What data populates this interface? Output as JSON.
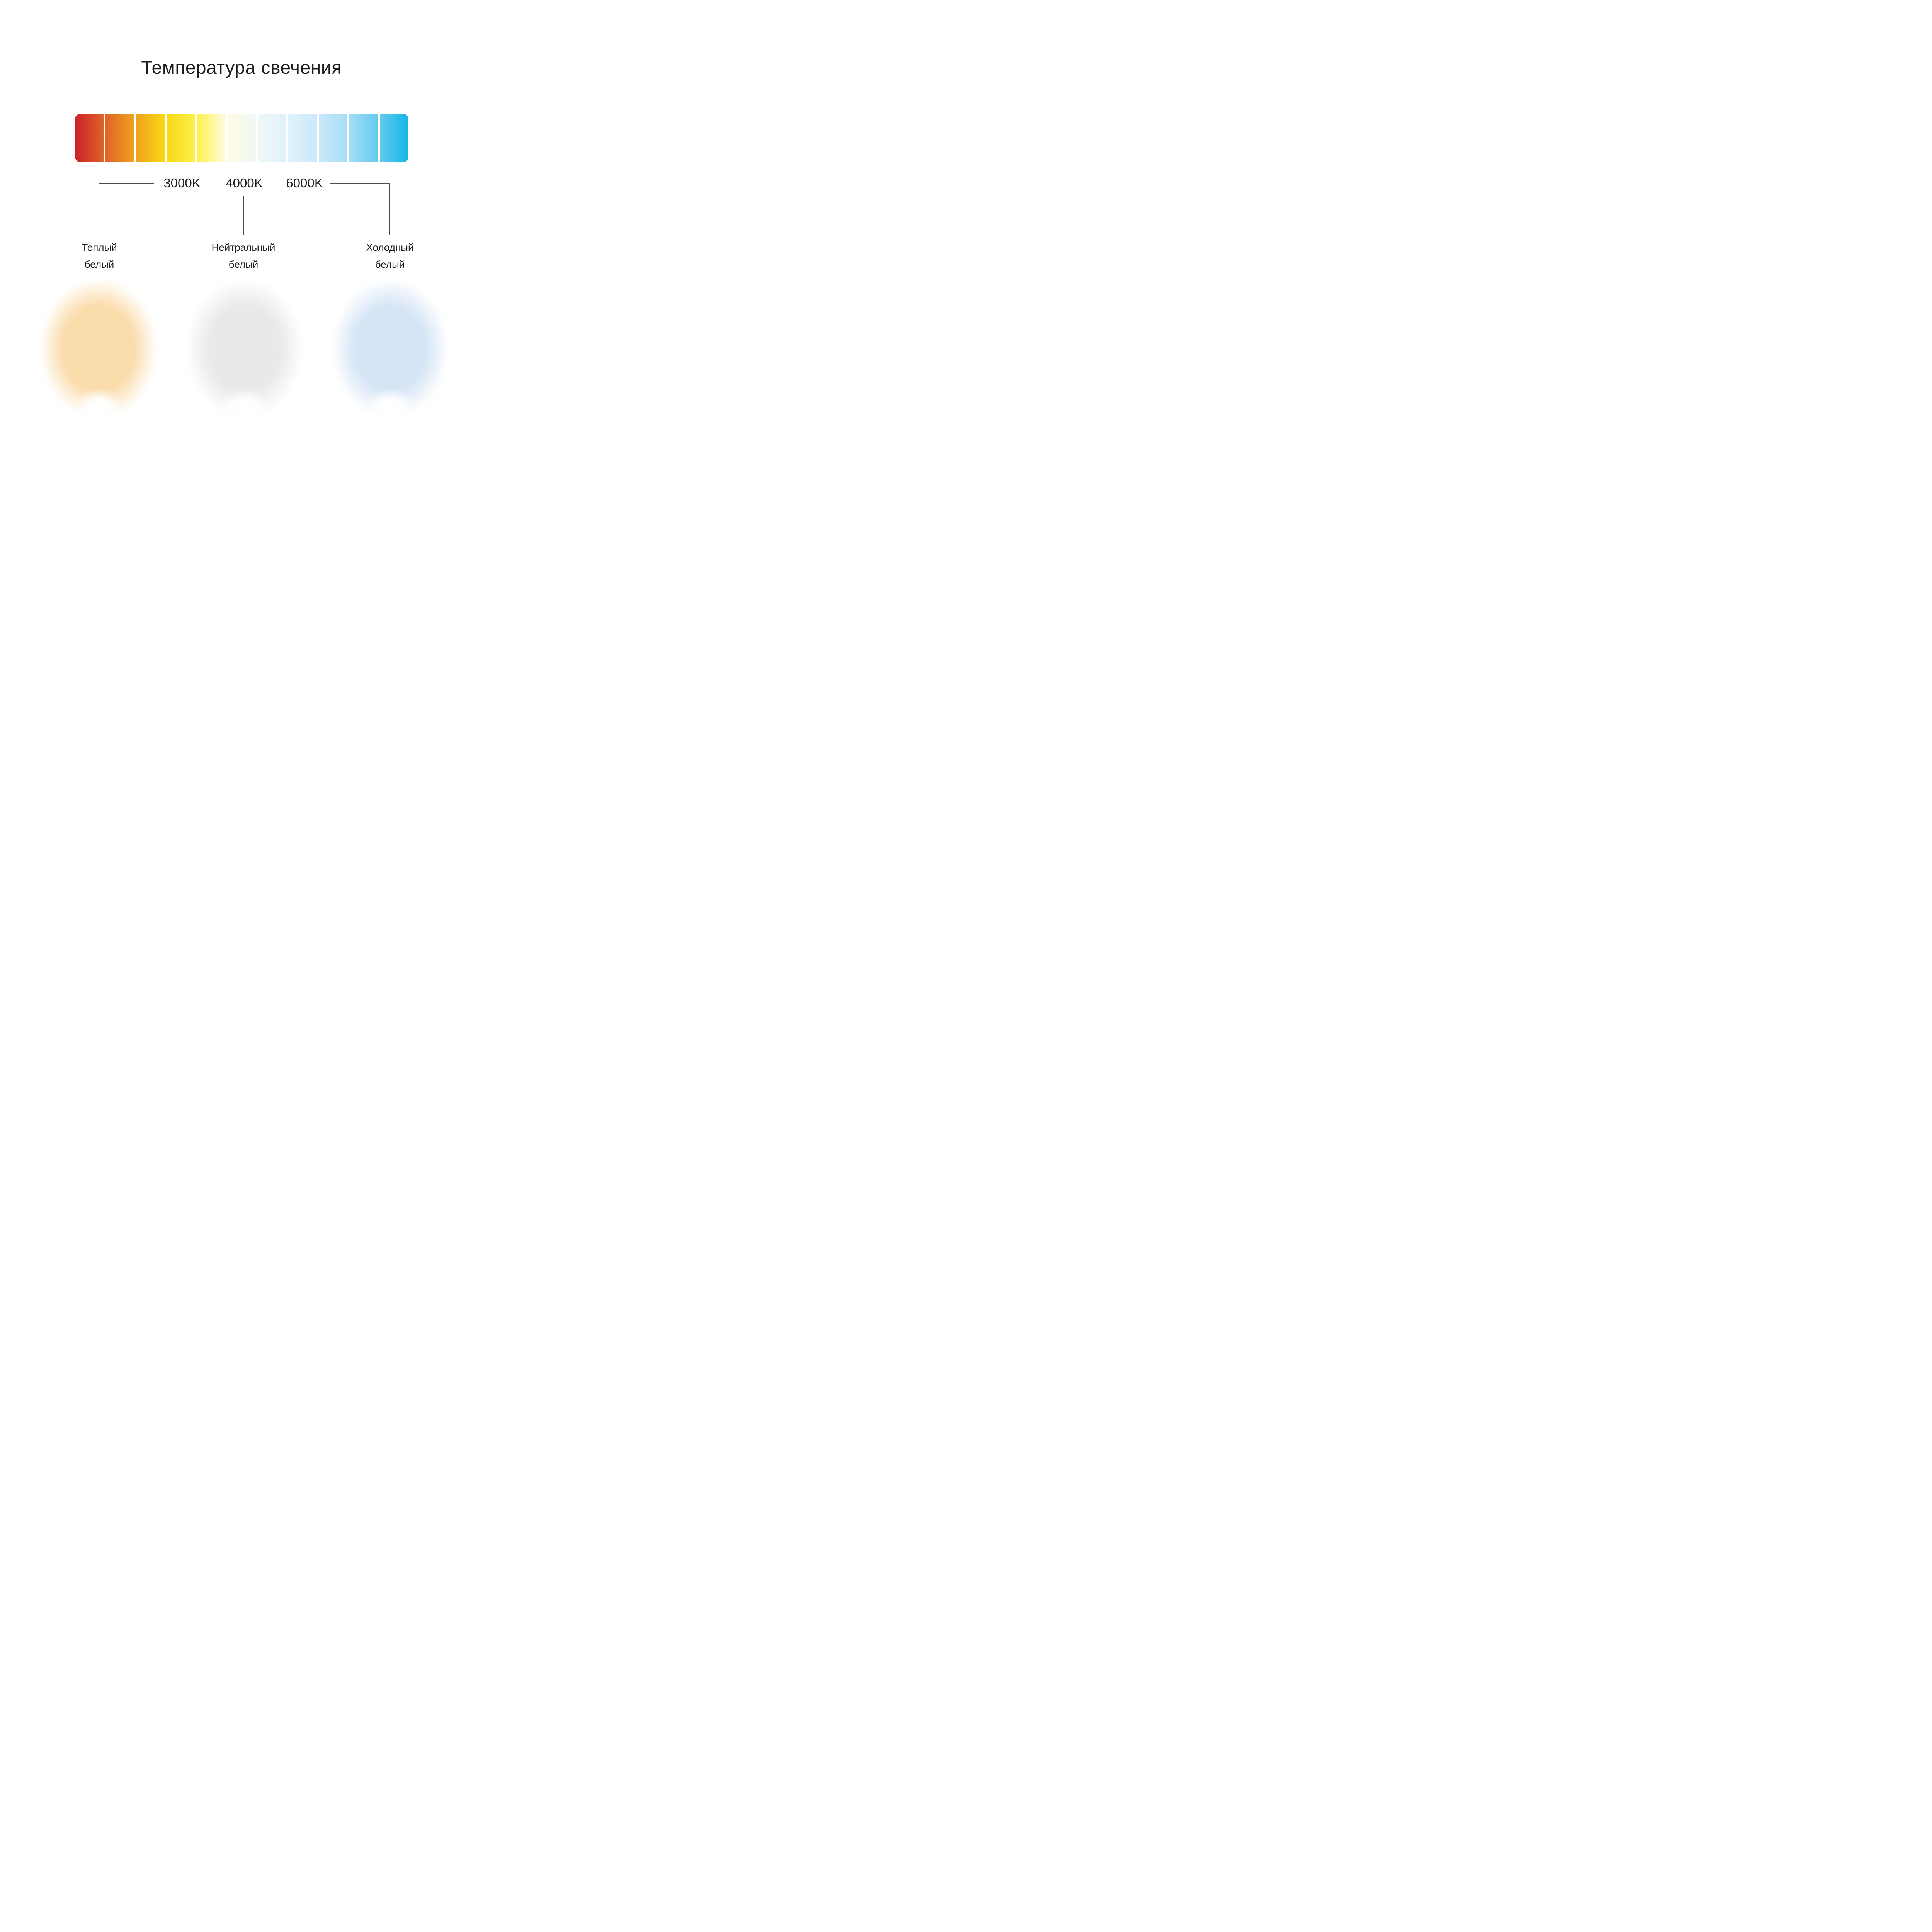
{
  "title": "Температура свечения",
  "scale_bar": {
    "segments": 11,
    "gradient_stops": [
      "#cd2027",
      "#e06329",
      "#eea11e",
      "#f9d813",
      "#fdf04d",
      "#fefce2",
      "#f0f8f6",
      "#e0f1fb",
      "#cbe8fa",
      "#a5def7",
      "#64caef",
      "#12b6e9"
    ],
    "gap_color": "#ffffff"
  },
  "ticks": [
    {
      "label": "3000K"
    },
    {
      "label": "4000K"
    },
    {
      "label": "6000K"
    }
  ],
  "categories": [
    {
      "name": "warm",
      "label_line1": "Теплый",
      "label_line2": "белый",
      "glow_color": "#fbdcab"
    },
    {
      "name": "neutral",
      "label_line1": "Нейтральный",
      "label_line2": "белый",
      "glow_color": "#e9e9e9"
    },
    {
      "name": "cool",
      "label_line1": "Холодный",
      "label_line2": "белый",
      "glow_color": "#d6e5f5"
    }
  ],
  "connector_line_color": "#4d4d4d",
  "text_color": "#1d1d1b"
}
